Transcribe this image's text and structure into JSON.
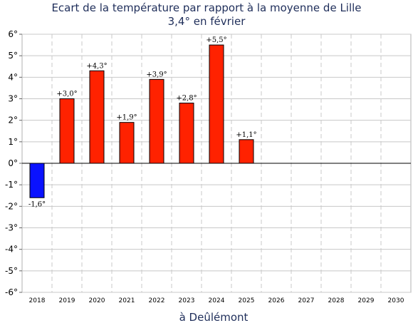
{
  "title": "Ecart de la température par rapport à la moyenne de Lille",
  "subtitle": "3,4° en février",
  "chart_data": {
    "type": "bar",
    "title": "Ecart de la température par rapport à la moyenne de Lille",
    "subtitle": "3,4° en février",
    "xlabel": "à Deûlémont",
    "ylabel": "",
    "categories": [
      "2018",
      "2019",
      "2020",
      "2021",
      "2022",
      "2023",
      "2024",
      "2025",
      "2026",
      "2027",
      "2028",
      "2029",
      "2030"
    ],
    "values": [
      -1.6,
      3.0,
      4.3,
      1.9,
      3.9,
      2.8,
      5.5,
      1.1,
      null,
      null,
      null,
      null,
      null
    ],
    "data_labels": [
      "-1,6°",
      "+3,0°",
      "+4,3°",
      "+1,9°",
      "+3,9°",
      "+2,8°",
      "+5,5°",
      "+1,1°",
      "",
      "",
      "",
      "",
      ""
    ],
    "ylim": [
      -6,
      6
    ],
    "yticks": [
      6,
      5,
      4,
      3,
      2,
      1,
      0,
      -1,
      -2,
      -3,
      -4,
      -5,
      -6
    ],
    "ytick_labels": [
      "6°",
      "5°",
      "4°",
      "3°",
      "2°",
      "1°",
      "0°",
      "-1°",
      "-2°",
      "-3°",
      "-4°",
      "-5°",
      "-6°"
    ],
    "colors": {
      "positive": "#ff2200",
      "negative": "#0a12ff",
      "title": "#1f2e5a"
    },
    "grid": true
  }
}
